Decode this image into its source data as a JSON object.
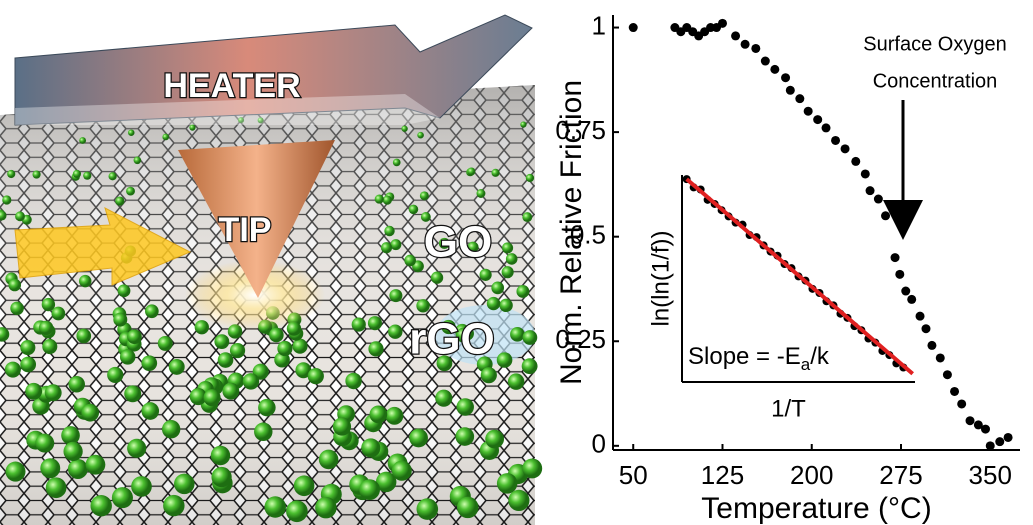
{
  "illustration": {
    "labels": [
      "HEATER",
      "TIP",
      "GO",
      "rGO"
    ]
  },
  "chart_data": [
    {
      "type": "scatter",
      "xlabel": "Temperature (°C)",
      "ylabel": "Norm. Relative Friction",
      "x": [
        50,
        85,
        90,
        95,
        100,
        105,
        110,
        115,
        120,
        125,
        136,
        144,
        153,
        161,
        169,
        178,
        182,
        190,
        197,
        205,
        212,
        220,
        228,
        237,
        245,
        249,
        256,
        262,
        270,
        274,
        279,
        284,
        291,
        296,
        301,
        308,
        314,
        320,
        326,
        333,
        340,
        346,
        350,
        358,
        365
      ],
      "values": [
        1.0,
        1.0,
        0.99,
        1.0,
        0.99,
        0.98,
        0.99,
        1.0,
        1.0,
        1.01,
        0.98,
        0.96,
        0.95,
        0.92,
        0.9,
        0.88,
        0.85,
        0.83,
        0.8,
        0.78,
        0.76,
        0.73,
        0.71,
        0.68,
        0.65,
        0.61,
        0.59,
        0.55,
        0.45,
        0.41,
        0.37,
        0.35,
        0.31,
        0.28,
        0.24,
        0.21,
        0.17,
        0.13,
        0.1,
        0.06,
        0.05,
        0.04,
        0.0,
        0.01,
        0.02
      ],
      "color": "#000000",
      "xlim": [
        33,
        375
      ],
      "ylim": [
        -0.01,
        1.03
      ],
      "xticks": [
        50,
        125,
        200,
        275,
        350
      ],
      "yticks": [
        0,
        0.25,
        0.5,
        0.75,
        1
      ],
      "annotation": [
        "Surface Oxygen",
        "Concentration"
      ]
    },
    {
      "type": "scatter",
      "xlabel": "1/T",
      "ylabel": "ln(ln(1/f))",
      "x": [
        0.02,
        0.05,
        0.08,
        0.11,
        0.14,
        0.17,
        0.2,
        0.23,
        0.26,
        0.29,
        0.32,
        0.35,
        0.38,
        0.41,
        0.44,
        0.47,
        0.5,
        0.53,
        0.56,
        0.59,
        0.62,
        0.65,
        0.68,
        0.71,
        0.74,
        0.77,
        0.8,
        0.83,
        0.86,
        0.89,
        0.92,
        0.95
      ],
      "values": [
        0.98,
        0.94,
        0.93,
        0.88,
        0.86,
        0.83,
        0.8,
        0.77,
        0.76,
        0.71,
        0.7,
        0.66,
        0.63,
        0.61,
        0.57,
        0.55,
        0.51,
        0.49,
        0.45,
        0.43,
        0.39,
        0.37,
        0.33,
        0.31,
        0.27,
        0.25,
        0.21,
        0.19,
        0.15,
        0.13,
        0.09,
        0.07
      ],
      "color": "#000000",
      "xlim": [
        0,
        1
      ],
      "ylim": [
        0,
        1
      ],
      "fit": {
        "x": [
          0.02,
          0.99
        ],
        "values": [
          0.98,
          0.04
        ],
        "color": "#e02020"
      },
      "annotation": {
        "text": "Slope = -E",
        "subscript": "a",
        "suffix": "/k"
      }
    }
  ]
}
